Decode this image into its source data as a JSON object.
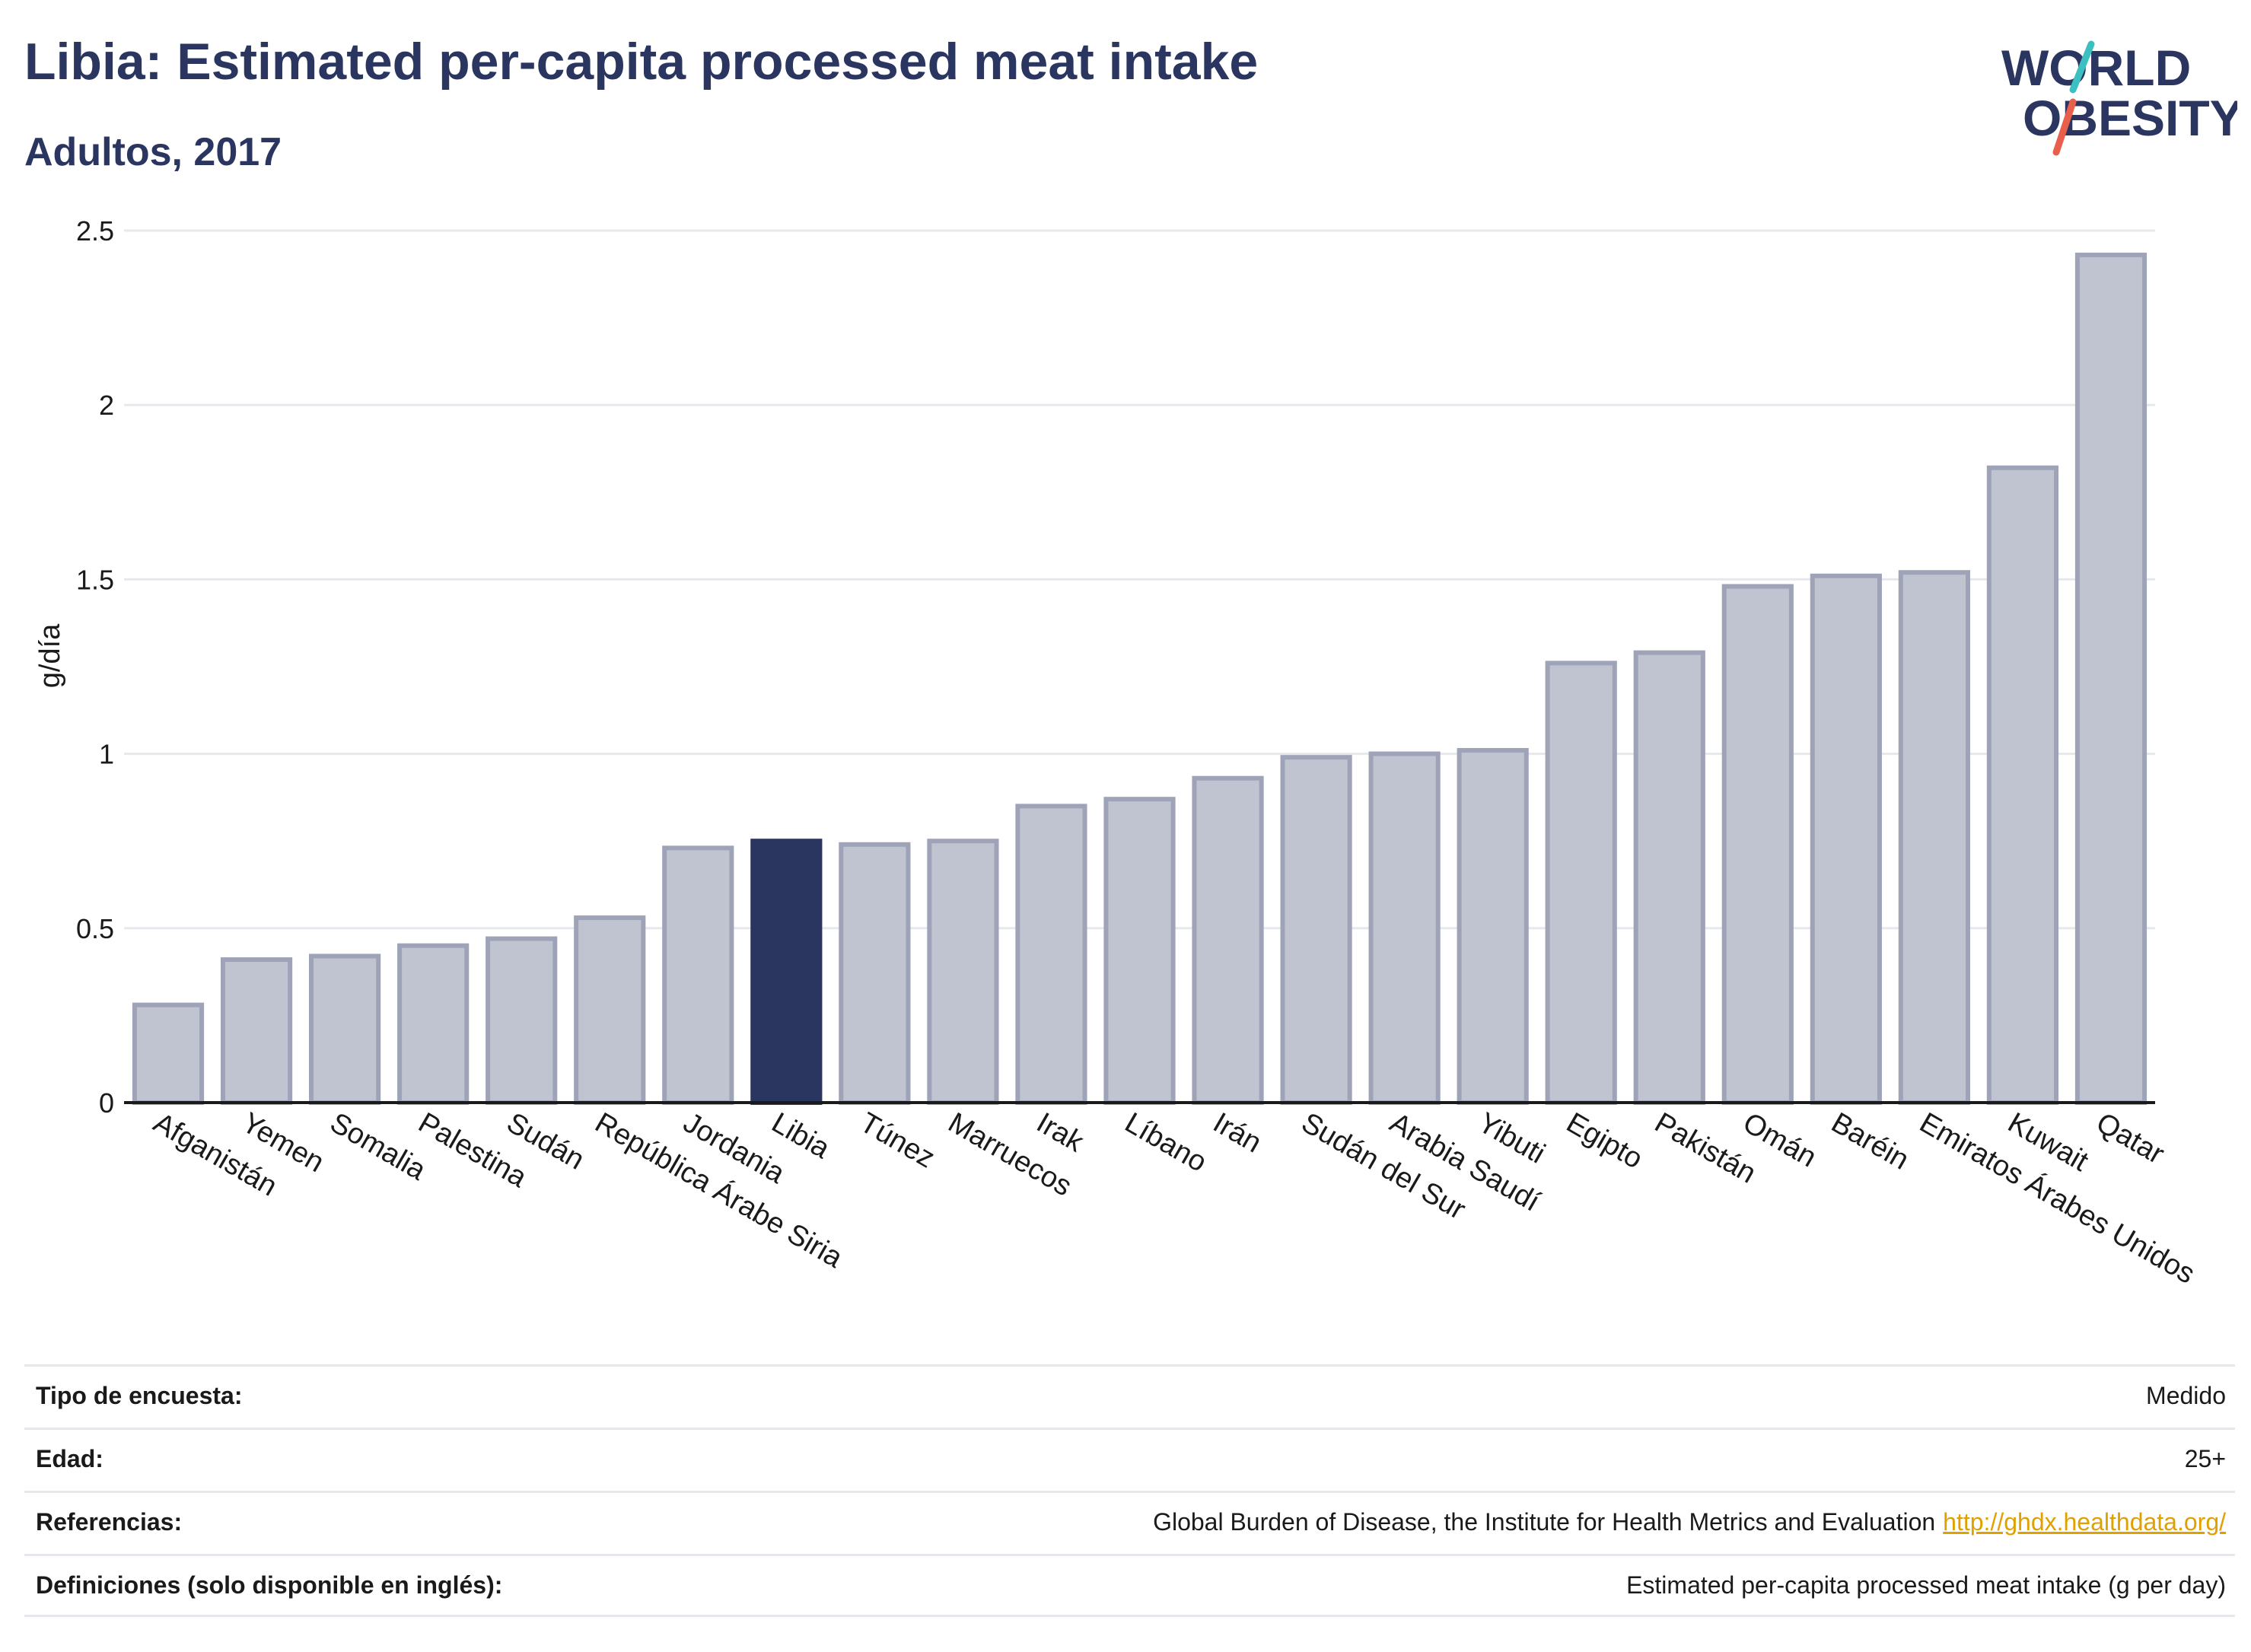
{
  "header": {
    "title": "Libia: Estimated per-capita processed meat intake",
    "subtitle": "Adultos, 2017"
  },
  "logo": {
    "line1": "WORLD",
    "line2": "OBESITY",
    "accent_teal": "#3bbfc1",
    "accent_red": "#e8604c",
    "text_color": "#2a3560"
  },
  "chart_data": {
    "type": "bar",
    "ylabel": "g/día",
    "xlabel": "",
    "ylim": [
      0,
      2.5
    ],
    "yticks": [
      0,
      0.5,
      1,
      1.5,
      2,
      2.5
    ],
    "ytick_labels": [
      "0",
      "0.5",
      "1",
      "1.5",
      "2",
      "2.5"
    ],
    "grid": true,
    "highlight": "Libia",
    "colors": {
      "default": "#c0c3d0",
      "default_border": "#9ea3b8",
      "highlight": "#2a3560"
    },
    "categories": [
      "Afganistán",
      "Yemen",
      "Somalia",
      "Palestina",
      "Sudán",
      "República Árabe Siria",
      "Jordania",
      "Libia",
      "Túnez",
      "Marruecos",
      "Irak",
      "Líbano",
      "Irán",
      "Sudán del Sur",
      "Arabia Saudí",
      "Yibuti",
      "Egipto",
      "Pakistán",
      "Omán",
      "Baréin",
      "Emiratos Árabes Unidos",
      "Kuwait",
      "Qatar"
    ],
    "values": [
      0.28,
      0.41,
      0.42,
      0.45,
      0.47,
      0.53,
      0.73,
      0.75,
      0.74,
      0.75,
      0.85,
      0.87,
      0.93,
      0.99,
      1.0,
      1.01,
      1.26,
      1.29,
      1.48,
      1.51,
      1.52,
      1.82,
      2.43
    ]
  },
  "info": [
    {
      "label": "Tipo de encuesta:",
      "value": "Medido"
    },
    {
      "label": "Edad:",
      "value": "25+"
    },
    {
      "label": "Referencias:",
      "value": "Global Burden of Disease, the Institute for Health Metrics and Evaluation",
      "link": "http://ghdx.healthdata.org/"
    },
    {
      "label": "Definiciones (solo disponible en inglés):",
      "value": "Estimated per-capita processed meat intake (g per day)"
    }
  ]
}
